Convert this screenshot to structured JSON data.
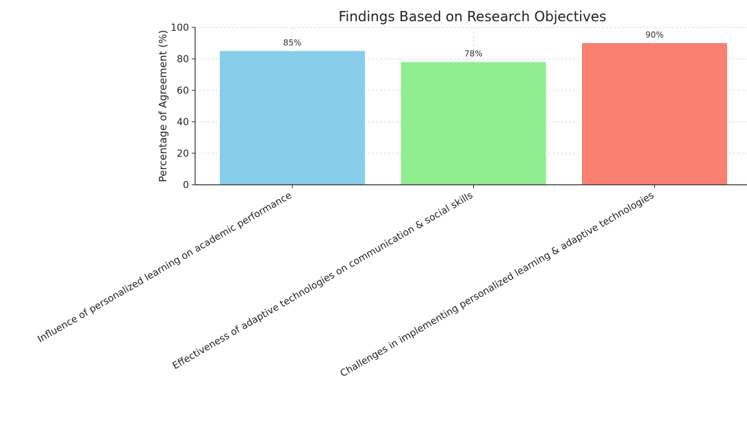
{
  "chart_data": {
    "type": "bar",
    "title": "Findings Based on Research Objectives",
    "xlabel": "",
    "ylabel": "Percentage of Agreement (%)",
    "ylim": [
      0,
      100
    ],
    "yticks": [
      0,
      20,
      40,
      60,
      80,
      100
    ],
    "grid": true,
    "categories": [
      "Influence of personalized learning on academic performance",
      "Effectiveness of adaptive technologies on communication & social skills",
      "Challenges in implementing personalized learning & adaptive technologies"
    ],
    "values": [
      85,
      78,
      90
    ],
    "data_labels": [
      "85%",
      "78%",
      "90%"
    ],
    "colors": [
      "#87ceeb",
      "#90ee90",
      "#fa8072"
    ]
  }
}
